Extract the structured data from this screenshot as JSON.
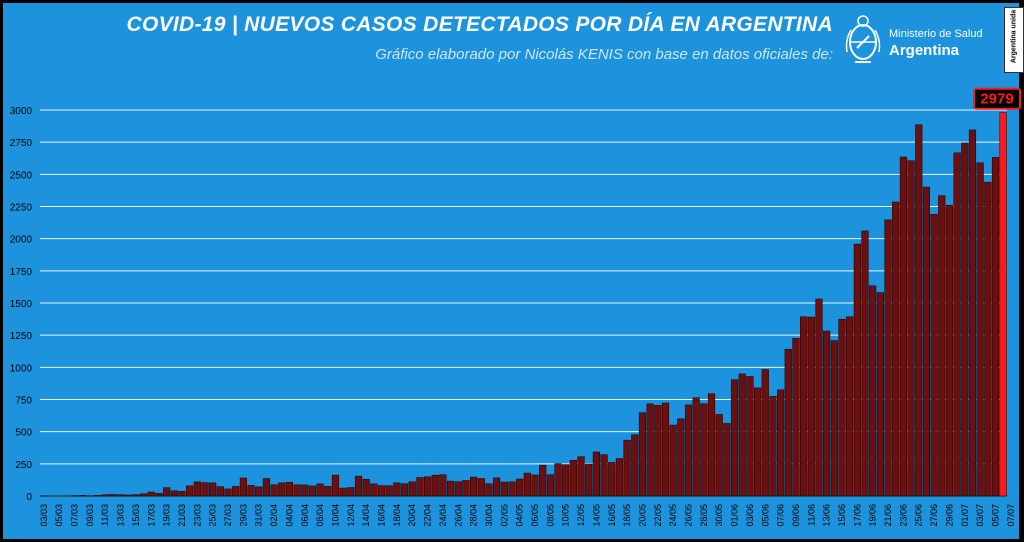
{
  "header": {
    "title": "COVID-19  |  NUEVOS CASOS DETECTADOS POR DÍA EN ARGENTINA",
    "subtitle": "Gráfico elaborado por Nicolás KENIS con base en datos oficiales de:",
    "logo_line1": "Ministerio de Salud",
    "logo_line2": "Argentina",
    "badge_text": "Argentina unida"
  },
  "colors": {
    "background": "#1c93dc",
    "bar": "#6b0f0f",
    "bar_highlight": "#ff1a1a",
    "gridline": "#ffffff"
  },
  "chart_data": {
    "type": "bar",
    "title": "",
    "xlabel": "",
    "ylabel": "",
    "ylim": [
      0,
      3000
    ],
    "yticks": [
      0,
      250,
      500,
      750,
      1000,
      1250,
      1500,
      1750,
      2000,
      2250,
      2500,
      2750,
      3000
    ],
    "grid": true,
    "highlight_label": "2979",
    "start_date": "03/03",
    "tick_labels": [
      "03/03",
      "05/03",
      "07/03",
      "09/03",
      "11/03",
      "13/03",
      "15/03",
      "17/03",
      "19/03",
      "21/03",
      "23/03",
      "25/03",
      "27/03",
      "29/03",
      "31/03",
      "02/04",
      "04/04",
      "06/04",
      "08/04",
      "10/04",
      "12/04",
      "14/04",
      "16/04",
      "18/04",
      "20/04",
      "22/04",
      "24/04",
      "26/04",
      "28/04",
      "30/04",
      "02/05",
      "04/05",
      "06/05",
      "08/05",
      "10/05",
      "12/05",
      "14/05",
      "16/05",
      "18/05",
      "20/05",
      "22/05",
      "24/05",
      "26/05",
      "28/05",
      "30/05",
      "01/06",
      "03/06",
      "05/06",
      "07/06",
      "09/06",
      "11/06",
      "13/06",
      "15/06",
      "17/06",
      "19/06",
      "21/06",
      "23/06",
      "25/06",
      "27/06",
      "29/06",
      "01/07",
      "03/07",
      "05/07",
      "07/07"
    ],
    "values": [
      1,
      0,
      0,
      0,
      3,
      5,
      2,
      5,
      10,
      12,
      10,
      8,
      11,
      17,
      31,
      21,
      65,
      41,
      36,
      79,
      110,
      104,
      102,
      73,
      55,
      74,
      140,
      82,
      71,
      136,
      87,
      102,
      107,
      87,
      86,
      78,
      94,
      75,
      162,
      62,
      66,
      155,
      130,
      94,
      81,
      80,
      102,
      95,
      111,
      144,
      149,
      162,
      166,
      116,
      111,
      121,
      147,
      136,
      95,
      141,
      108,
      110,
      132,
      178,
      164,
      240,
      165,
      251,
      244,
      278,
      306,
      248,
      342,
      322,
      261,
      291,
      434,
      477,
      648,
      716,
      704,
      723,
      551,
      600,
      708,
      764,
      718,
      795,
      634,
      564,
      904,
      949,
      929,
      840,
      983,
      774,
      826,
      1141,
      1226,
      1393,
      1391,
      1531,
      1282,
      1208,
      1374,
      1393,
      1958,
      2060,
      1634,
      1581,
      2146,
      2285,
      2635,
      2606,
      2886,
      2401,
      2189,
      2335,
      2260,
      2667,
      2744,
      2845,
      2590,
      2439,
      2632,
      2979
    ]
  }
}
